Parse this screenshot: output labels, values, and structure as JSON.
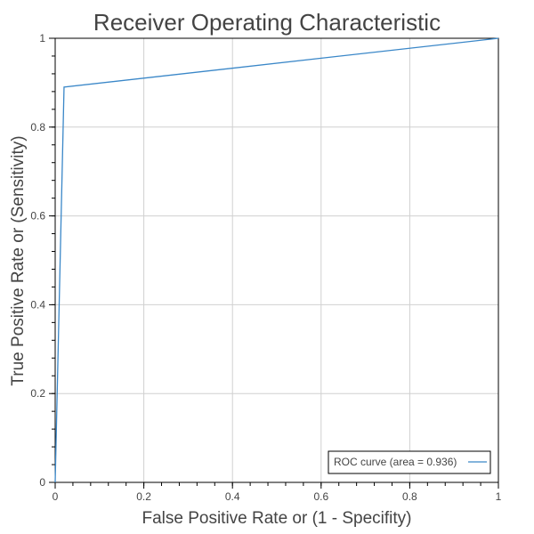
{
  "chart_data": {
    "type": "line",
    "title": "Receiver Operating Characteristic",
    "xlabel": "False Positive Rate or (1 - Specifity)",
    "ylabel": "True Positive Rate or (Sensitivity)",
    "xlim": [
      0,
      1
    ],
    "ylim": [
      0,
      1
    ],
    "x_ticks": [
      0,
      0.2,
      0.4,
      0.6,
      0.8,
      1
    ],
    "y_ticks": [
      0,
      0.2,
      0.4,
      0.6,
      0.8,
      1
    ],
    "x_tick_labels": [
      "0",
      "0.2",
      "0.4",
      "0.6",
      "0.8",
      "1"
    ],
    "y_tick_labels": [
      "0",
      "0.2",
      "0.4",
      "0.6",
      "0.8",
      "1"
    ],
    "grid": true,
    "legend_position": "bottom-right",
    "series": [
      {
        "name": "ROC curve (area = 0.936)",
        "color": "#3a87c8",
        "x": [
          0,
          0.02,
          1
        ],
        "y": [
          0,
          0.89,
          1
        ]
      }
    ]
  }
}
